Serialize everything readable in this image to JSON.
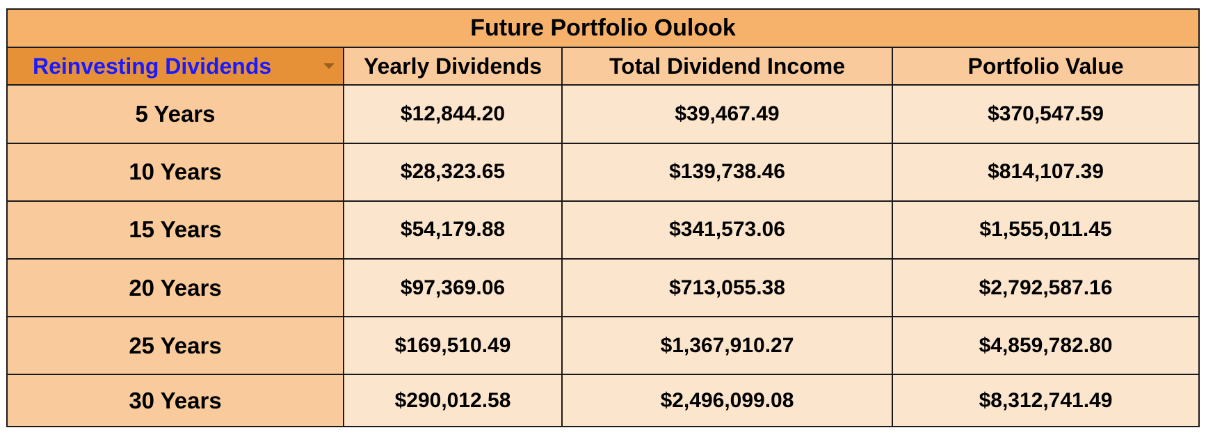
{
  "title": "Future Portfolio Oulook",
  "selector": {
    "selected": "Reinvesting Dividends"
  },
  "columns": [
    "Yearly Dividends",
    "Total Dividend Income",
    "Portfolio Value"
  ],
  "rows": [
    {
      "label": "5 Years",
      "values": [
        "$12,844.20",
        "$39,467.49",
        "$370,547.59"
      ]
    },
    {
      "label": "10 Years",
      "values": [
        "$28,323.65",
        "$139,738.46",
        "$814,107.39"
      ]
    },
    {
      "label": "15 Years",
      "values": [
        "$54,179.88",
        "$341,573.06",
        "$1,555,011.45"
      ]
    },
    {
      "label": "20 Years",
      "values": [
        "$97,369.06",
        "$713,055.38",
        "$2,792,587.16"
      ]
    },
    {
      "label": "25 Years",
      "values": [
        "$169,510.49",
        "$1,367,910.27",
        "$4,859,782.80"
      ]
    },
    {
      "label": "30 Years",
      "values": [
        "$290,012.58",
        "$2,496,099.08",
        "$8,312,741.49"
      ]
    }
  ],
  "colors": {
    "title_bg": "#f6b26b",
    "header_bg": "#f9cb9c",
    "selector_bg": "#e69138",
    "selector_text": "#1a1aff",
    "cell_bg": "#fce5cd",
    "border": "#1a1a1a"
  },
  "icons": {
    "dropdown": "chevron-down-icon"
  }
}
